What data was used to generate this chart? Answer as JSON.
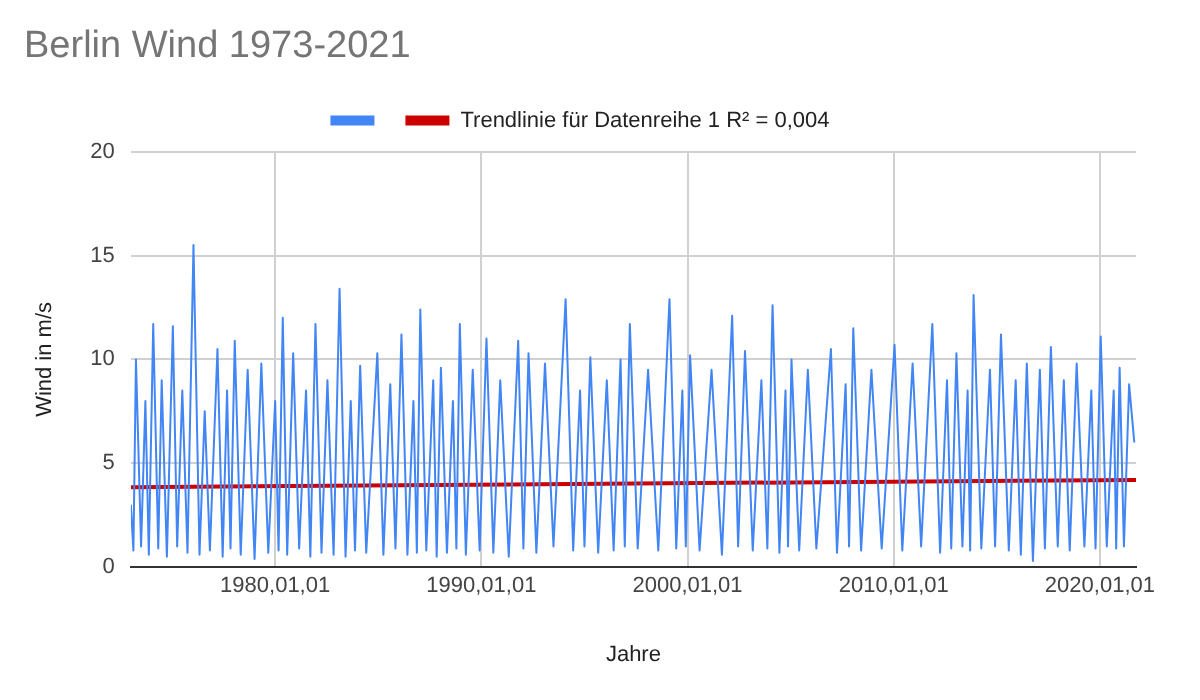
{
  "chart_data": {
    "type": "line",
    "title": "Berlin Wind 1973-2021",
    "xlabel": "Jahre",
    "ylabel": "Wind in m/s",
    "xlim": [
      "1973-01-01",
      "2021-10-01"
    ],
    "xticks": [
      {
        "value": "1980-01-01",
        "label": "1980,01,01"
      },
      {
        "value": "1990-01-01",
        "label": "1990,01,01"
      },
      {
        "value": "2000-01-01",
        "label": "2000,01,01"
      },
      {
        "value": "2010-01-01",
        "label": "2010,01,01"
      },
      {
        "value": "2020-01-01",
        "label": "2020,01,01"
      }
    ],
    "ylim": [
      0,
      20
    ],
    "yticks": [
      0,
      5,
      10,
      15,
      20
    ],
    "grid": true,
    "legend": "top",
    "marker": "none",
    "line_style": "solid",
    "x": [
      "1973-01-01",
      "1973-02-15",
      "1973-04-01",
      "1973-07-01",
      "1973-09-15",
      "1973-11-15",
      "1974-02-01",
      "1974-05-01",
      "1974-07-01",
      "1974-10-01",
      "1975-01-15",
      "1975-04-01",
      "1975-07-01",
      "1975-10-01",
      "1976-01-15",
      "1976-05-01",
      "1976-08-01",
      "1976-11-01",
      "1977-03-15",
      "1977-06-15",
      "1977-09-01",
      "1977-11-01",
      "1978-01-15",
      "1978-05-01",
      "1978-09-01",
      "1979-01-01",
      "1979-05-01",
      "1979-09-01",
      "1980-01-01",
      "1980-03-01",
      "1980-05-15",
      "1980-08-01",
      "1980-11-15",
      "1981-03-01",
      "1981-07-01",
      "1981-09-15",
      "1981-12-15",
      "1982-04-01",
      "1982-07-15",
      "1982-11-01",
      "1983-02-15",
      "1983-06-01",
      "1983-09-01",
      "1983-11-15",
      "1984-02-15",
      "1984-06-01",
      "1984-12-15",
      "1985-04-01",
      "1985-08-01",
      "1985-11-01",
      "1986-02-15",
      "1986-06-01",
      "1986-09-15",
      "1986-11-15",
      "1987-01-15",
      "1987-05-01",
      "1987-09-01",
      "1987-11-01",
      "1988-01-15",
      "1988-05-01",
      "1988-08-15",
      "1988-10-15",
      "1988-12-15",
      "1989-04-01",
      "1989-08-01",
      "1989-12-01",
      "1990-04-01",
      "1990-08-01",
      "1990-12-01",
      "1991-05-01",
      "1991-10-15",
      "1992-01-15",
      "1992-04-15",
      "1992-09-01",
      "1993-02-01",
      "1993-07-01",
      "1994-02-01",
      "1994-06-15",
      "1994-10-15",
      "1995-01-01",
      "1995-04-15",
      "1995-09-01",
      "1996-02-01",
      "1996-06-01",
      "1996-10-01",
      "1996-12-15",
      "1997-03-15",
      "1997-08-01",
      "1998-02-01",
      "1998-08-01",
      "1999-02-15",
      "1999-06-15",
      "1999-10-01",
      "1999-12-01",
      "2000-02-15",
      "2000-08-01",
      "2001-03-01",
      "2001-09-01",
      "2002-03-01",
      "2002-06-15",
      "2002-10-15",
      "2003-03-01",
      "2003-08-01",
      "2003-11-15",
      "2004-02-15",
      "2004-06-15",
      "2004-10-01",
      "2004-11-15",
      "2005-01-15",
      "2005-06-01",
      "2005-11-01",
      "2006-04-01",
      "2006-12-15",
      "2007-04-01",
      "2007-09-01",
      "2007-11-01",
      "2008-01-15",
      "2008-06-01",
      "2008-12-01",
      "2009-06-01",
      "2010-01-15",
      "2010-06-01",
      "2010-12-01",
      "2011-05-01",
      "2011-11-15",
      "2012-04-01",
      "2012-08-01",
      "2012-10-15",
      "2013-01-15",
      "2013-05-01",
      "2013-08-01",
      "2013-09-15",
      "2013-11-15",
      "2014-04-01",
      "2014-09-01",
      "2014-12-01",
      "2015-03-15",
      "2015-08-01",
      "2015-12-01",
      "2016-03-01",
      "2016-06-15",
      "2016-10-01",
      "2017-02-01",
      "2017-05-01",
      "2017-08-15",
      "2017-12-15",
      "2018-04-01",
      "2018-07-15",
      "2018-11-15",
      "2019-04-01",
      "2019-08-01",
      "2019-10-15",
      "2020-01-15",
      "2020-05-01",
      "2020-09-01",
      "2020-10-15",
      "2020-12-15",
      "2021-03-01",
      "2021-06-01",
      "2021-09-01"
    ],
    "series": [
      {
        "color": "#4285f4",
        "values": [
          3.0,
          0.8,
          10.0,
          1.0,
          8.0,
          0.6,
          11.7,
          0.9,
          9.0,
          0.5,
          11.6,
          1.0,
          8.5,
          0.7,
          15.5,
          0.6,
          7.5,
          0.8,
          10.5,
          0.5,
          8.5,
          0.9,
          10.9,
          0.6,
          9.5,
          0.4,
          9.8,
          0.7,
          8.0,
          0.8,
          12.0,
          0.6,
          10.3,
          0.9,
          8.5,
          0.5,
          11.7,
          0.7,
          9.0,
          0.6,
          13.4,
          0.5,
          8.0,
          0.8,
          9.7,
          0.7,
          10.3,
          0.6,
          8.8,
          0.9,
          11.2,
          0.6,
          8.0,
          0.7,
          12.4,
          0.8,
          9.0,
          0.5,
          9.6,
          0.7,
          8.0,
          0.9,
          11.7,
          0.6,
          9.5,
          0.8,
          11.0,
          0.7,
          9.0,
          0.5,
          10.9,
          0.9,
          10.3,
          0.7,
          9.8,
          1.0,
          12.9,
          0.8,
          8.5,
          1.0,
          10.1,
          0.7,
          9.0,
          0.8,
          10.0,
          1.0,
          11.7,
          0.9,
          9.5,
          0.8,
          12.9,
          0.9,
          8.5,
          1.0,
          10.2,
          0.8,
          9.5,
          0.6,
          12.1,
          1.0,
          10.4,
          0.8,
          9.0,
          0.9,
          12.6,
          0.7,
          8.5,
          1.0,
          10.0,
          0.8,
          9.5,
          0.9,
          10.5,
          0.7,
          8.8,
          1.0,
          11.5,
          0.8,
          9.5,
          0.9,
          10.7,
          0.8,
          9.8,
          1.0,
          11.7,
          0.7,
          9.0,
          0.9,
          10.3,
          1.0,
          8.5,
          0.8,
          13.1,
          0.9,
          9.5,
          1.0,
          11.2,
          0.8,
          9.0,
          0.6,
          9.8,
          0.3,
          9.5,
          0.9,
          10.6,
          1.0,
          9.0,
          0.8,
          9.8,
          1.0,
          8.5,
          0.9,
          11.1,
          1.0,
          8.5,
          0.9,
          9.6,
          1.0,
          8.8,
          6.0
        ]
      },
      {
        "name": "Trendlinie für Datenreihe 1 R² = 0,004",
        "color": "#cc0000",
        "x": [
          "1973-01-01",
          "2021-10-01"
        ],
        "values": [
          3.85,
          4.2
        ]
      }
    ]
  }
}
